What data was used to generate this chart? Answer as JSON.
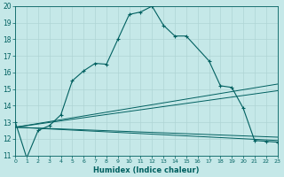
{
  "xlabel": "Humidex (Indice chaleur)",
  "bg_color": "#c5e8e8",
  "grid_color": "#afd4d4",
  "line_color": "#006060",
  "xlim": [
    0,
    23
  ],
  "ylim": [
    11,
    20
  ],
  "yticks": [
    11,
    12,
    13,
    14,
    15,
    16,
    17,
    18,
    19,
    20
  ],
  "xtick_labels": [
    "0",
    "1",
    "2",
    "3",
    "4",
    "5",
    "6",
    "7",
    "8",
    "9",
    "1011121314 15",
    "",
    "1718192021222 3"
  ],
  "main_x": [
    0,
    1,
    2,
    3,
    4,
    5,
    6,
    7,
    8,
    9,
    10,
    11,
    12,
    13,
    14,
    15,
    17,
    18,
    19,
    20,
    21,
    22,
    23
  ],
  "main_y": [
    13.0,
    10.85,
    12.5,
    12.8,
    13.45,
    15.5,
    16.1,
    16.55,
    16.5,
    18.0,
    19.5,
    19.65,
    20.0,
    18.85,
    18.2,
    18.2,
    16.7,
    15.2,
    15.1,
    13.85,
    11.9,
    11.85,
    11.8
  ],
  "ref_lines": [
    {
      "x": [
        0,
        23
      ],
      "y": [
        12.7,
        15.3
      ]
    },
    {
      "x": [
        0,
        23
      ],
      "y": [
        12.7,
        14.9
      ]
    },
    {
      "x": [
        0,
        23
      ],
      "y": [
        12.7,
        12.1
      ]
    },
    {
      "x": [
        0,
        23
      ],
      "y": [
        12.7,
        11.9
      ]
    }
  ]
}
